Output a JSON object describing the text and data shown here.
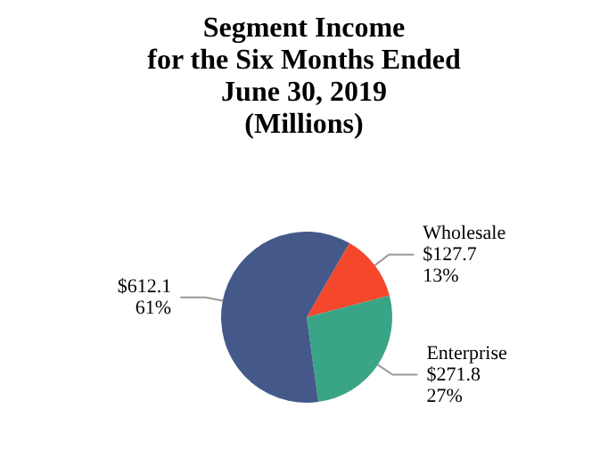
{
  "chart_data": {
    "type": "pie",
    "title": "Segment Income\nfor the Six Months Ended\nJune 30, 2019\n(Millions)",
    "categories": [
      "Wholesale",
      "Enterprise",
      null
    ],
    "values": [
      127.7,
      271.8,
      612.1
    ],
    "value_labels": [
      "$127.7\n13%",
      "$271.8\n27%",
      "$612.1\n61%"
    ],
    "colors": [
      "#f4472c",
      "#3aa486",
      "#44598a"
    ],
    "legend": false
  }
}
